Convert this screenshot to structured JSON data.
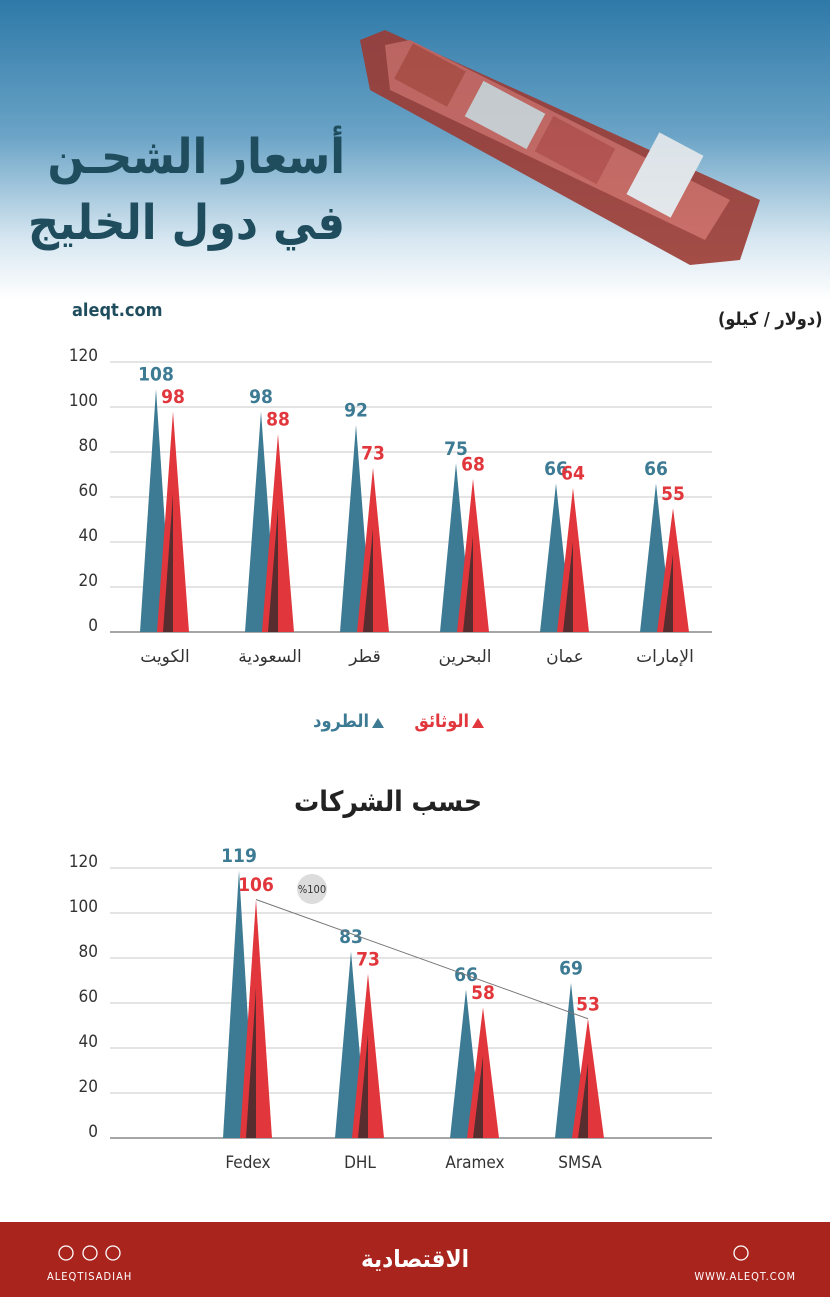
{
  "header": {
    "title_line1": "أسعار الشحـن",
    "title_line2": "في دول الخليج",
    "site": "aleqt.com"
  },
  "chart_data": [
    {
      "type": "bar",
      "unit_label": "(دولار / كيلو)",
      "categories": [
        "الكويت",
        "السعودية",
        "قطر",
        "البحرين",
        "عمان",
        "الإمارات"
      ],
      "series": [
        {
          "name": "الطرود",
          "color": "#3d7a93",
          "values": [
            108,
            98,
            92,
            75,
            66,
            66
          ]
        },
        {
          "name": "الوثائق",
          "color": "#e0363c",
          "values": [
            98,
            88,
            73,
            68,
            64,
            55
          ]
        }
      ],
      "ylim": [
        0,
        120
      ],
      "yticks": [
        0,
        20,
        40,
        60,
        80,
        100,
        120
      ],
      "grid": true,
      "legend": "bottom"
    },
    {
      "type": "bar",
      "title": "حسب الشركات",
      "annotation": "%100",
      "categories": [
        "Fedex",
        "DHL",
        "Aramex",
        "SMSA"
      ],
      "series": [
        {
          "name": "الطرود",
          "color": "#3d7a93",
          "values": [
            119,
            83,
            66,
            69
          ]
        },
        {
          "name": "الوثائق",
          "color": "#e0363c",
          "values": [
            106,
            73,
            58,
            53
          ]
        }
      ],
      "ylim": [
        0,
        120
      ],
      "yticks": [
        0,
        20,
        40,
        60,
        80,
        100,
        120
      ],
      "grid": true
    }
  ],
  "footer": {
    "handle": "ALEQTISADIAH",
    "logo": "الاقتصادية",
    "url": "WWW.ALEQT.COM"
  }
}
